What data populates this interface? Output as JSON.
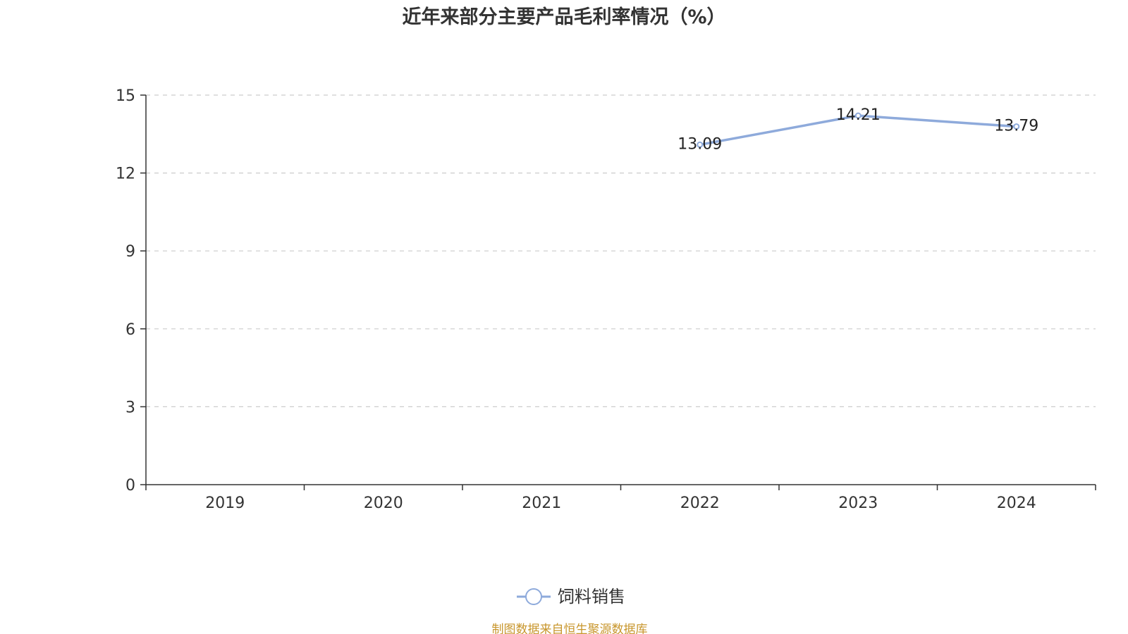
{
  "chart_data": {
    "type": "line",
    "title": "近年来部分主要产品毛利率情况（%）",
    "categories": [
      "2019",
      "2020",
      "2021",
      "2022",
      "2023",
      "2024"
    ],
    "series": [
      {
        "name": "饲料销售",
        "values": [
          null,
          null,
          null,
          13.09,
          14.21,
          13.79
        ],
        "labels": [
          "",
          "",
          "",
          "13.09",
          "14.21",
          "13.79"
        ],
        "color": "#8eaadb"
      }
    ],
    "ylim": [
      0,
      15
    ],
    "yticks": [
      "0",
      "3",
      "6",
      "9",
      "12",
      "15"
    ],
    "grid": true,
    "legend_position": "bottom"
  },
  "source_note": "制图数据来自恒生聚源数据库",
  "colors": {
    "axis": "#333333",
    "grid": "#cccccc",
    "source": "#c8962c"
  }
}
